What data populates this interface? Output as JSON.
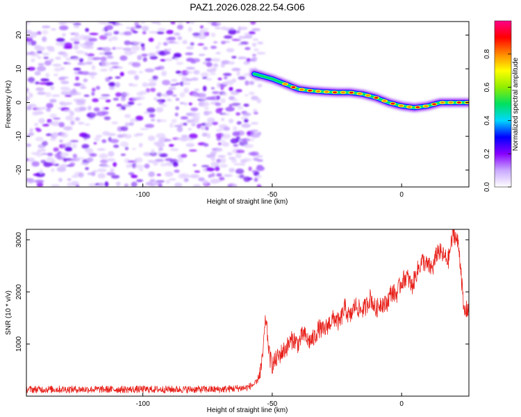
{
  "title": "PAZ1.2026.028.22.54.G06",
  "chart_data": [
    {
      "type": "heatmap",
      "id": "spectrogram",
      "xlabel": "Height of straight line (km)",
      "ylabel": "Frequency (Hz)",
      "xlim": [
        -145,
        26
      ],
      "ylim": [
        -25,
        24
      ],
      "xticks": [
        -100,
        -50,
        0
      ],
      "yticks": [
        -20,
        -10,
        0,
        10,
        20
      ],
      "noise_region_x": [
        -145,
        -56
      ],
      "noise_density_fraction": 0.42,
      "signal_track": {
        "x": [
          -57,
          -50,
          -45,
          -40,
          -35,
          -30,
          -25,
          -20,
          -15,
          -10,
          -5,
          0,
          5,
          10,
          15,
          20,
          26
        ],
        "frequency": [
          8.5,
          7,
          5.5,
          4,
          3.5,
          3.2,
          3,
          3,
          2.5,
          1.5,
          0,
          -1,
          -1.5,
          -1,
          0,
          0,
          0
        ],
        "bright_band_start_x": -45
      },
      "colorbar": {
        "label": "Normalized spectral amplitude",
        "range": [
          0,
          1
        ],
        "ticks": [
          "0.0",
          "0.2",
          "0.4",
          "0.6",
          "0.8"
        ],
        "colors": [
          "#ffffff",
          "#c9a8ff",
          "#8800ff",
          "#0000ff",
          "#00d8ff",
          "#00e060",
          "#90ee00",
          "#ffff00",
          "#ff8800",
          "#ff0000",
          "#ff0088"
        ]
      }
    },
    {
      "type": "line",
      "id": "snr",
      "xlabel": "Height of straight line (km)",
      "ylabel": "SNR (10 * v/v)",
      "xlim": [
        -145,
        26
      ],
      "ylim": [
        0,
        3200
      ],
      "xticks": [
        -100,
        -50,
        0
      ],
      "yticks": [
        1000,
        2000,
        3000
      ],
      "color": "#e8201a",
      "series": {
        "x": [
          -145,
          -130,
          -115,
          -100,
          -85,
          -70,
          -60,
          -56,
          -54,
          -52.5,
          -51,
          -50,
          -47,
          -45,
          -42,
          -40,
          -38,
          -36,
          -34,
          -32,
          -30,
          -28,
          -26,
          -24,
          -22,
          -20,
          -18,
          -16,
          -14,
          -12,
          -10,
          -8,
          -6,
          -4,
          -2,
          0,
          2,
          4,
          6,
          8,
          10,
          12,
          14,
          16,
          18,
          20,
          22,
          23,
          24,
          26
        ],
        "y": [
          130,
          130,
          130,
          130,
          130,
          130,
          160,
          250,
          600,
          1500,
          750,
          600,
          800,
          900,
          1100,
          1000,
          1200,
          1050,
          1100,
          1300,
          1250,
          1400,
          1500,
          1400,
          1700,
          1500,
          1750,
          1650,
          1700,
          1900,
          1650,
          1800,
          1750,
          2000,
          1950,
          2200,
          2300,
          2100,
          2400,
          2600,
          2500,
          2450,
          2800,
          2700,
          2600,
          3150,
          2900,
          2400,
          1600,
          1700
        ],
        "noise_amplitude": 70
      }
    }
  ]
}
